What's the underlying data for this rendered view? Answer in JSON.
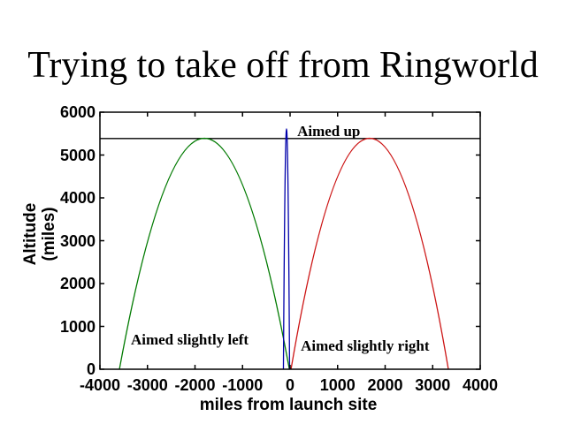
{
  "chart_data": {
    "type": "line",
    "title": "Trying to take off from Ringworld",
    "xlabel": "miles from launch site",
    "ylabel": "Altitude (miles)",
    "ylabel_lines": [
      "Altitude",
      "(miles)"
    ],
    "xlim": [
      -4000,
      4000
    ],
    "ylim": [
      0,
      6000
    ],
    "xticks": [
      "-4000",
      "-3000",
      "-2000",
      "-1000",
      "0",
      "1000",
      "2000",
      "3000",
      "4000"
    ],
    "yticks": [
      "0",
      "1000",
      "2000",
      "3000",
      "4000",
      "5000",
      "6000"
    ],
    "grid": false,
    "legend_position": "none",
    "axis_color": "#000000",
    "background_color": "#ffffff",
    "reference_line": {
      "altitude": 5385,
      "color": "#000000",
      "x_span": [
        -4000,
        4000
      ]
    },
    "series": [
      {
        "name": "Aimed slightly left",
        "color": "#007a00",
        "launch_x": -15,
        "landing_x": -3590,
        "peak_x": -1802,
        "peak_altitude": 5390,
        "points": [
          [
            -15,
            0
          ],
          [
            -500,
            2529
          ],
          [
            -1000,
            4303
          ],
          [
            -1802,
            5390
          ],
          [
            -2600,
            4317
          ],
          [
            -3100,
            2550
          ],
          [
            -3590,
            0
          ]
        ]
      },
      {
        "name": "Aimed up",
        "color": "#0000aa",
        "launch_x": -10,
        "landing_x": -140,
        "peak_x": -75,
        "peak_altitude": 5610,
        "points": [
          [
            -10,
            0
          ],
          [
            -40,
            3984
          ],
          [
            -75,
            5610
          ],
          [
            -110,
            3984
          ],
          [
            -140,
            0
          ]
        ]
      },
      {
        "name": "Aimed slightly right",
        "color": "#cc1414",
        "launch_x": 20,
        "landing_x": 3330,
        "peak_x": 1675,
        "peak_altitude": 5390,
        "points": [
          [
            20,
            0
          ],
          [
            500,
            2674
          ],
          [
            1000,
            4493
          ],
          [
            1675,
            5390
          ],
          [
            2350,
            4493
          ],
          [
            2850,
            2674
          ],
          [
            3330,
            0
          ]
        ]
      }
    ],
    "annotations": [
      {
        "text": "Aimed up",
        "x": 150,
        "alt": 5460
      },
      {
        "text": "Aimed slightly left",
        "x": -3350,
        "alt": 600
      },
      {
        "text": "Aimed slightly right",
        "x": 225,
        "alt": 455
      }
    ]
  }
}
